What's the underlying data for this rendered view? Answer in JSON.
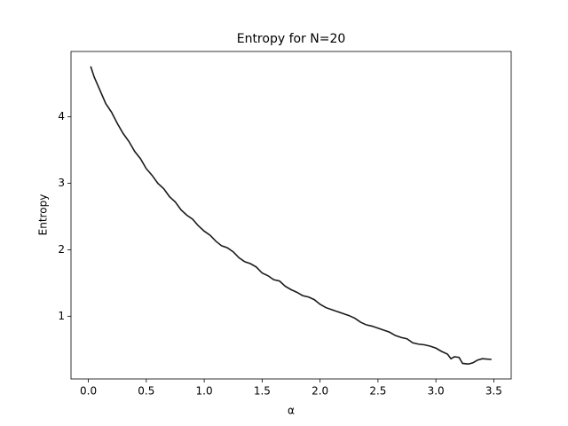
{
  "chart_data": {
    "type": "line",
    "title": "Entropy for N=20",
    "xlabel": "α",
    "ylabel": "Entropy",
    "x": [
      0.02,
      0.05,
      0.1,
      0.15,
      0.2,
      0.25,
      0.3,
      0.35,
      0.4,
      0.45,
      0.5,
      0.55,
      0.6,
      0.65,
      0.7,
      0.75,
      0.8,
      0.85,
      0.9,
      0.95,
      1.0,
      1.05,
      1.1,
      1.15,
      1.2,
      1.25,
      1.3,
      1.35,
      1.4,
      1.45,
      1.5,
      1.55,
      1.6,
      1.65,
      1.7,
      1.75,
      1.8,
      1.85,
      1.9,
      1.95,
      2.0,
      2.05,
      2.1,
      2.15,
      2.2,
      2.25,
      2.3,
      2.35,
      2.4,
      2.45,
      2.5,
      2.55,
      2.6,
      2.65,
      2.7,
      2.75,
      2.8,
      2.85,
      2.9,
      2.95,
      3.0,
      3.05,
      3.1,
      3.13,
      3.16,
      3.2,
      3.23,
      3.28,
      3.32,
      3.36,
      3.4,
      3.48
    ],
    "series": [
      {
        "name": "Entropy",
        "color": "#1a1a1a",
        "values": [
          4.76,
          4.6,
          4.4,
          4.2,
          4.07,
          3.9,
          3.75,
          3.63,
          3.48,
          3.37,
          3.22,
          3.12,
          3.0,
          2.92,
          2.8,
          2.72,
          2.6,
          2.52,
          2.46,
          2.36,
          2.28,
          2.22,
          2.13,
          2.06,
          2.03,
          1.97,
          1.88,
          1.82,
          1.79,
          1.74,
          1.65,
          1.61,
          1.55,
          1.53,
          1.45,
          1.4,
          1.36,
          1.31,
          1.29,
          1.25,
          1.18,
          1.13,
          1.1,
          1.07,
          1.04,
          1.01,
          0.97,
          0.91,
          0.87,
          0.85,
          0.82,
          0.79,
          0.76,
          0.71,
          0.68,
          0.66,
          0.6,
          0.58,
          0.57,
          0.55,
          0.52,
          0.47,
          0.43,
          0.36,
          0.39,
          0.38,
          0.29,
          0.28,
          0.3,
          0.34,
          0.36,
          0.35
        ]
      }
    ],
    "xlim": [
      -0.15,
      3.65
    ],
    "xticks": [
      {
        "value": 0,
        "label": "0.0"
      },
      0.5,
      {
        "value": 1,
        "label": "1.0"
      },
      1.5,
      {
        "value": 2,
        "label": "2.0"
      },
      2.5,
      {
        "value": 3,
        "label": "3.0"
      },
      3.5
    ],
    "ylim": [
      0.056,
      4.984
    ],
    "yticks": [
      1,
      2,
      3,
      4
    ]
  }
}
